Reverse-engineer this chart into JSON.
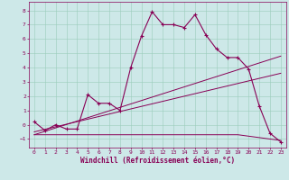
{
  "xlabel": "Windchill (Refroidissement éolien,°C)",
  "bg_color": "#cde8e8",
  "line_color": "#880055",
  "xlim": [
    -0.5,
    23.5
  ],
  "ylim": [
    -1.6,
    8.6
  ],
  "xticks": [
    0,
    1,
    2,
    3,
    4,
    5,
    6,
    7,
    8,
    9,
    10,
    11,
    12,
    13,
    14,
    15,
    16,
    17,
    18,
    19,
    20,
    21,
    22,
    23
  ],
  "yticks": [
    -1,
    0,
    1,
    2,
    3,
    4,
    5,
    6,
    7,
    8
  ],
  "grid_color": "#99ccbb",
  "series1_x": [
    0,
    1,
    2,
    3,
    4,
    5,
    6,
    7,
    8,
    9,
    10,
    11,
    12,
    13,
    14,
    15,
    16,
    17,
    18,
    19,
    20,
    21,
    22,
    23
  ],
  "series1_y": [
    0.2,
    -0.4,
    0.0,
    -0.3,
    -0.3,
    2.1,
    1.5,
    1.5,
    1.0,
    4.0,
    6.2,
    7.9,
    7.0,
    7.0,
    6.8,
    7.7,
    6.3,
    5.3,
    4.7,
    4.7,
    3.9,
    1.3,
    -0.6,
    -1.2
  ],
  "series2_x": [
    0,
    23
  ],
  "series2_y": [
    -0.5,
    3.6
  ],
  "series3_x": [
    0,
    23
  ],
  "series3_y": [
    -0.7,
    4.8
  ],
  "series4_x": [
    0,
    10,
    19,
    23
  ],
  "series4_y": [
    -0.7,
    -0.7,
    -0.7,
    -1.1
  ],
  "label_fontsize": 4.5,
  "xlabel_fontsize": 5.5
}
